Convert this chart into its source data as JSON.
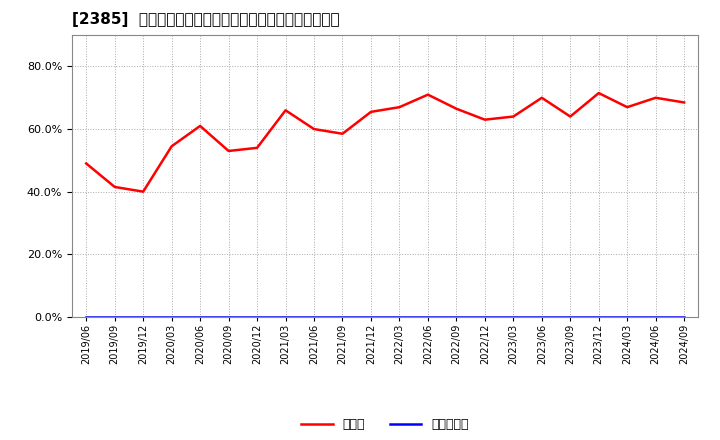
{
  "title": "[2385]  現预金、有利子負債の総資産に対する比率の推移",
  "x_labels": [
    "2019/06",
    "2019/09",
    "2019/12",
    "2020/03",
    "2020/06",
    "2020/09",
    "2020/12",
    "2021/03",
    "2021/06",
    "2021/09",
    "2021/12",
    "2022/03",
    "2022/06",
    "2022/09",
    "2022/12",
    "2023/03",
    "2023/06",
    "2023/09",
    "2023/12",
    "2024/03",
    "2024/06",
    "2024/09"
  ],
  "cash_ratio": [
    0.49,
    0.415,
    0.4,
    0.545,
    0.61,
    0.53,
    0.54,
    0.66,
    0.6,
    0.585,
    0.655,
    0.67,
    0.71,
    0.665,
    0.63,
    0.64,
    0.7,
    0.64,
    0.715,
    0.67,
    0.7,
    0.685
  ],
  "debt_ratio": [
    0.0,
    0.0,
    0.0,
    0.0,
    0.0,
    0.0,
    0.0,
    0.0,
    0.0,
    0.0,
    0.0,
    0.0,
    0.0,
    0.0,
    0.0,
    0.0,
    0.0,
    0.0,
    0.0,
    0.0,
    0.0,
    0.0
  ],
  "cash_color": "#ff0000",
  "debt_color": "#0000ff",
  "cash_label": "現预金",
  "debt_label": "有利子負債",
  "ylim": [
    0.0,
    0.9
  ],
  "yticks": [
    0.0,
    0.2,
    0.4,
    0.6,
    0.8
  ],
  "background_color": "#ffffff",
  "plot_bg_color": "#ffffff",
  "grid_color": "#aaaaaa",
  "title_fontsize": 11,
  "legend_fontsize": 9,
  "tick_fontsize": 7
}
